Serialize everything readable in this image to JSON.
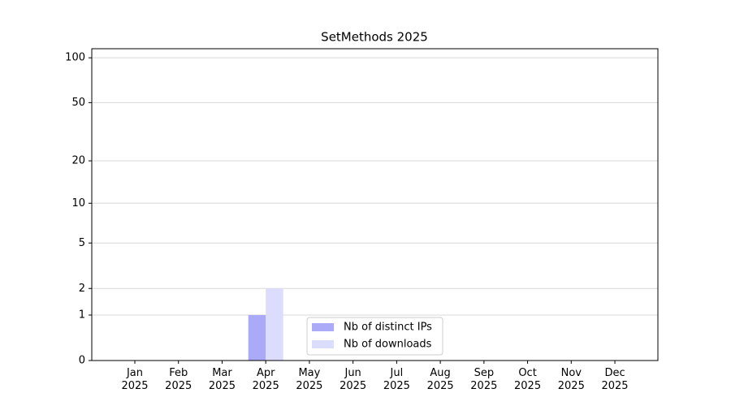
{
  "chart_data": {
    "type": "bar",
    "title": "SetMethods 2025",
    "categories": [
      "Jan\n2025",
      "Feb\n2025",
      "Mar\n2025",
      "Apr\n2025",
      "May\n2025",
      "Jun\n2025",
      "Jul\n2025",
      "Aug\n2025",
      "Sep\n2025",
      "Oct\n2025",
      "Nov\n2025",
      "Dec\n2025"
    ],
    "series": [
      {
        "name": "Nb of distinct IPs",
        "color": "#aaaaf8",
        "values": [
          0,
          0,
          0,
          1,
          0,
          0,
          0,
          0,
          0,
          0,
          0,
          0
        ]
      },
      {
        "name": "Nb of downloads",
        "color": "#dcdcfc",
        "values": [
          0,
          0,
          0,
          2,
          0,
          0,
          0,
          0,
          0,
          0,
          0,
          0
        ]
      }
    ],
    "yscale": "log1p",
    "ylim": [
      0,
      115
    ],
    "yticks": [
      0,
      1,
      2,
      5,
      10,
      20,
      50,
      100
    ],
    "grid": true,
    "legend": "lower center"
  }
}
